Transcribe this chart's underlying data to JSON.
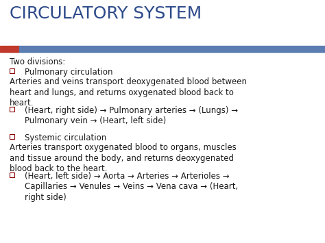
{
  "title": "CIRCULATORY SYSTEM",
  "title_color": "#2E4B8B",
  "title_fontsize": 18,
  "bg_color": "#ffffff",
  "bar_red_color": "#c0392b",
  "bar_blue_color": "#5b7db1",
  "text_color": "#1a1a1a",
  "bullet_color": "#8b0000",
  "content": [
    {
      "type": "text",
      "text": "Two divisions:",
      "indent": 0
    },
    {
      "type": "bullet",
      "text": "Pulmonary circulation",
      "indent": 1
    },
    {
      "type": "text",
      "text": "Arteries and veins transport deoxygenated blood between\nheart and lungs, and returns oxygenated blood back to\nheart.",
      "indent": 0
    },
    {
      "type": "bullet",
      "text": "(Heart, right side) → Pulmonary arteries → (Lungs) →\nPulmonary vein → (Heart, left side)",
      "indent": 1
    },
    {
      "type": "spacer"
    },
    {
      "type": "bullet",
      "text": "Systemic circulation",
      "indent": 1
    },
    {
      "type": "text",
      "text": "Arteries transport oxygenated blood to organs, muscles\nand tissue around the body, and returns deoxygenated\nblood back to the heart.",
      "indent": 0
    },
    {
      "type": "bullet",
      "text": "(Heart, left side) → Aorta → Arteries → Arterioles →\nCapillaries → Venules → Veins → Vena cava → (Heart,\nright side)",
      "indent": 1
    }
  ]
}
